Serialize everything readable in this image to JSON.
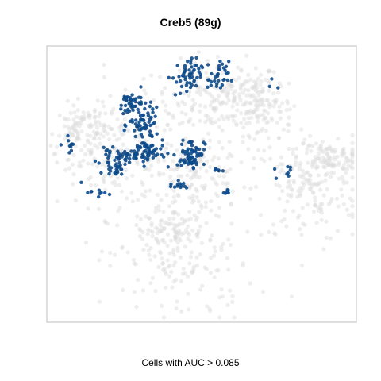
{
  "chart_data": {
    "type": "scatter",
    "title": "Creb5 (89g)",
    "caption": "Cells with AUC > 0.085",
    "xlabel": "",
    "ylabel": "",
    "grid": false,
    "axes_visible": false,
    "colors": {
      "background_cells": "#d9d9d9",
      "highlighted_cells": "#0d4a8a",
      "frame": "#bfbfbf"
    },
    "series": [
      {
        "role": "background",
        "point_count": 1200,
        "clusters": [
          {
            "cx": 0.56,
            "cy": 0.82,
            "sx": 0.11,
            "sy": 0.07,
            "n": 220
          },
          {
            "cx": 0.22,
            "cy": 0.62,
            "sx": 0.1,
            "sy": 0.1,
            "n": 180
          },
          {
            "cx": 0.48,
            "cy": 0.52,
            "sx": 0.08,
            "sy": 0.06,
            "n": 120
          },
          {
            "cx": 0.85,
            "cy": 0.48,
            "sx": 0.09,
            "sy": 0.1,
            "n": 170
          },
          {
            "cx": 0.92,
            "cy": 0.6,
            "sx": 0.05,
            "sy": 0.03,
            "n": 90
          },
          {
            "cx": 0.43,
            "cy": 0.2,
            "sx": 0.12,
            "sy": 0.11,
            "n": 140
          },
          {
            "cx": 0.4,
            "cy": 0.33,
            "sx": 0.06,
            "sy": 0.04,
            "n": 90
          },
          {
            "cx": 0.7,
            "cy": 0.78,
            "sx": 0.05,
            "sy": 0.07,
            "n": 100
          },
          {
            "cx": 0.1,
            "cy": 0.7,
            "sx": 0.04,
            "sy": 0.05,
            "n": 90
          }
        ]
      },
      {
        "role": "highlighted",
        "point_count": 430,
        "clusters": [
          {
            "cx": 0.27,
            "cy": 0.8,
            "sx": 0.025,
            "sy": 0.025,
            "n": 45
          },
          {
            "cx": 0.31,
            "cy": 0.72,
            "sx": 0.025,
            "sy": 0.03,
            "n": 55
          },
          {
            "cx": 0.32,
            "cy": 0.62,
            "sx": 0.03,
            "sy": 0.025,
            "n": 60
          },
          {
            "cx": 0.22,
            "cy": 0.6,
            "sx": 0.03,
            "sy": 0.015,
            "n": 40
          },
          {
            "cx": 0.22,
            "cy": 0.56,
            "sx": 0.02,
            "sy": 0.015,
            "n": 20
          },
          {
            "cx": 0.47,
            "cy": 0.62,
            "sx": 0.02,
            "sy": 0.025,
            "n": 55
          },
          {
            "cx": 0.44,
            "cy": 0.58,
            "sx": 0.02,
            "sy": 0.01,
            "n": 15
          },
          {
            "cx": 0.45,
            "cy": 0.9,
            "sx": 0.025,
            "sy": 0.035,
            "n": 55
          },
          {
            "cx": 0.56,
            "cy": 0.9,
            "sx": 0.015,
            "sy": 0.03,
            "n": 30
          },
          {
            "cx": 0.42,
            "cy": 0.5,
            "sx": 0.02,
            "sy": 0.01,
            "n": 12
          },
          {
            "cx": 0.55,
            "cy": 0.55,
            "sx": 0.01,
            "sy": 0.005,
            "n": 6
          },
          {
            "cx": 0.58,
            "cy": 0.47,
            "sx": 0.01,
            "sy": 0.005,
            "n": 6
          },
          {
            "cx": 0.78,
            "cy": 0.55,
            "sx": 0.02,
            "sy": 0.02,
            "n": 8
          },
          {
            "cx": 0.07,
            "cy": 0.65,
            "sx": 0.015,
            "sy": 0.015,
            "n": 10
          },
          {
            "cx": 0.15,
            "cy": 0.47,
            "sx": 0.02,
            "sy": 0.02,
            "n": 10
          },
          {
            "cx": 0.74,
            "cy": 0.88,
            "sx": 0.01,
            "sy": 0.01,
            "n": 3
          }
        ]
      }
    ]
  }
}
